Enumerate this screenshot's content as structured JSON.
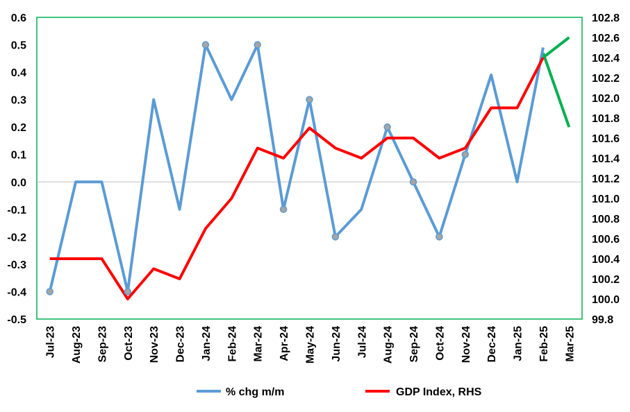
{
  "chart_data": {
    "type": "line",
    "categories": [
      "Jul-23",
      "Aug-23",
      "Sep-23",
      "Oct-23",
      "Nov-23",
      "Dec-23",
      "Jan-24",
      "Feb-24",
      "Mar-24",
      "Apr-24",
      "May-24",
      "Jun-24",
      "Jul-24",
      "Aug-24",
      "Sep-24",
      "Oct-24",
      "Nov-24",
      "Dec-24",
      "Jan-25",
      "Feb-25",
      "Mar-25"
    ],
    "y_left": {
      "min": -0.5,
      "max": 0.6,
      "step": 0.1,
      "ticks": [
        "0.6",
        "0.5",
        "0.4",
        "0.3",
        "0.2",
        "0.1",
        "0.0",
        "-0.1",
        "-0.2",
        "-0.3",
        "-0.4",
        "-0.5"
      ]
    },
    "y_right": {
      "min": 99.8,
      "max": 102.8,
      "step": 0.2,
      "ticks": [
        "102.8",
        "102.6",
        "102.4",
        "102.2",
        "102.0",
        "101.8",
        "101.6",
        "101.4",
        "101.2",
        "101.0",
        "100.8",
        "100.6",
        "100.4",
        "100.2",
        "100.0",
        "99.8"
      ]
    },
    "series": [
      {
        "name": "% chg m/m",
        "axis": "left",
        "color": "#5B9BD5",
        "values": [
          -0.4,
          0.0,
          0.0,
          -0.4,
          0.3,
          -0.1,
          0.5,
          0.3,
          0.5,
          -0.1,
          0.3,
          -0.2,
          -0.1,
          0.2,
          0.0,
          -0.2,
          0.1,
          0.39,
          0.0,
          0.49,
          null
        ],
        "markers": [
          true,
          false,
          false,
          true,
          false,
          false,
          true,
          false,
          true,
          true,
          true,
          true,
          false,
          true,
          true,
          true,
          true,
          false,
          false,
          false,
          false
        ]
      },
      {
        "name": "GDP Index, RHS",
        "axis": "right",
        "color": "#FF0000",
        "values": [
          100.4,
          100.4,
          100.4,
          100.0,
          100.3,
          100.2,
          100.7,
          101.0,
          101.5,
          101.4,
          101.7,
          101.5,
          101.4,
          101.6,
          101.6,
          101.4,
          101.5,
          101.9,
          101.9,
          102.4,
          null
        ]
      }
    ],
    "projection": {
      "color": "#00B050",
      "pct_feb": 0.47,
      "pct_mar": 0.2,
      "gdp_feb": 102.4,
      "gdp_mar": 102.6
    },
    "plot_border_color": "#00B050",
    "legend_position": "bottom"
  }
}
